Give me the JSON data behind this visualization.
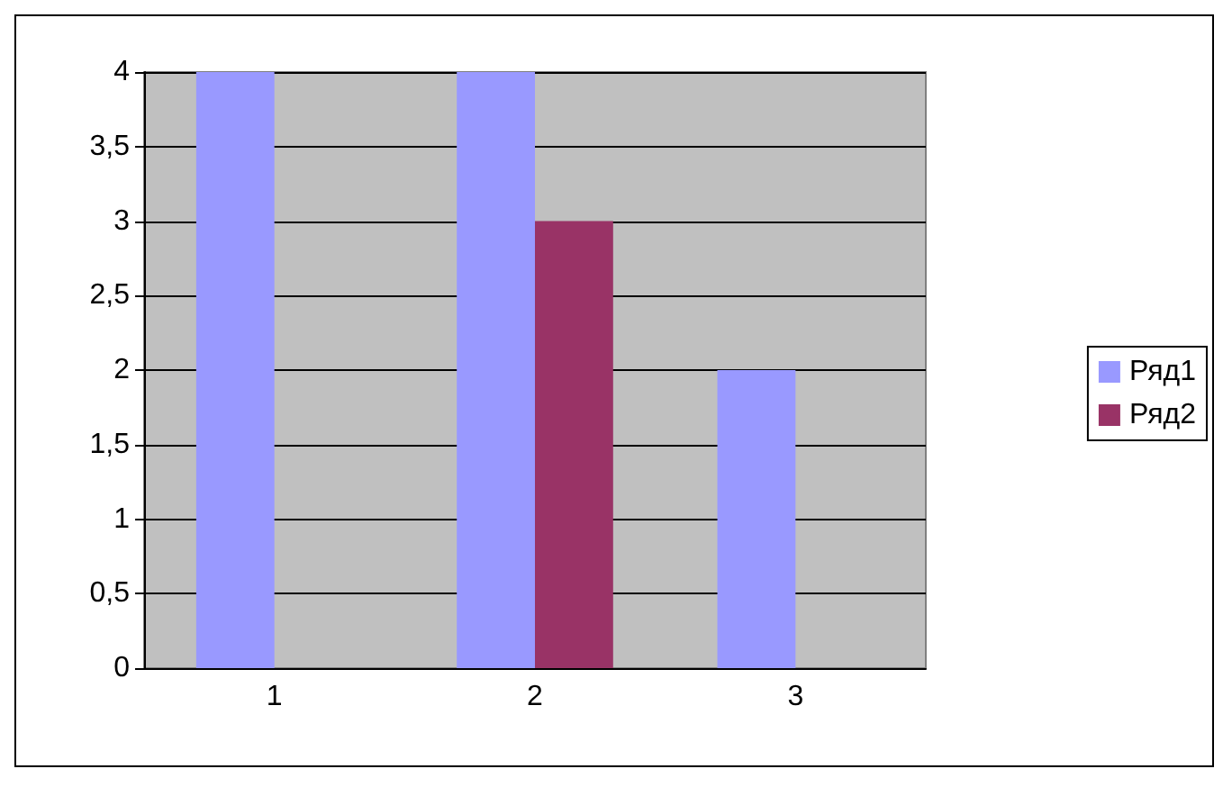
{
  "chart_data": {
    "type": "bar",
    "categories": [
      "1",
      "2",
      "3"
    ],
    "series": [
      {
        "name": "Ряд1",
        "color": "#9999ff",
        "values": [
          4,
          4,
          2
        ]
      },
      {
        "name": "Ряд2",
        "color": "#993366",
        "values": [
          0,
          3,
          0
        ]
      }
    ],
    "ylim": [
      0,
      4
    ],
    "yticks": [
      0,
      {
        "value": 0.5,
        "label": "0,5"
      },
      1,
      {
        "value": 1.5,
        "label": "1,5"
      },
      2,
      {
        "value": 2.5,
        "label": "2,5"
      },
      3,
      {
        "value": 3.5,
        "label": "3,5"
      },
      4
    ],
    "grid": "y",
    "legend": "right"
  }
}
